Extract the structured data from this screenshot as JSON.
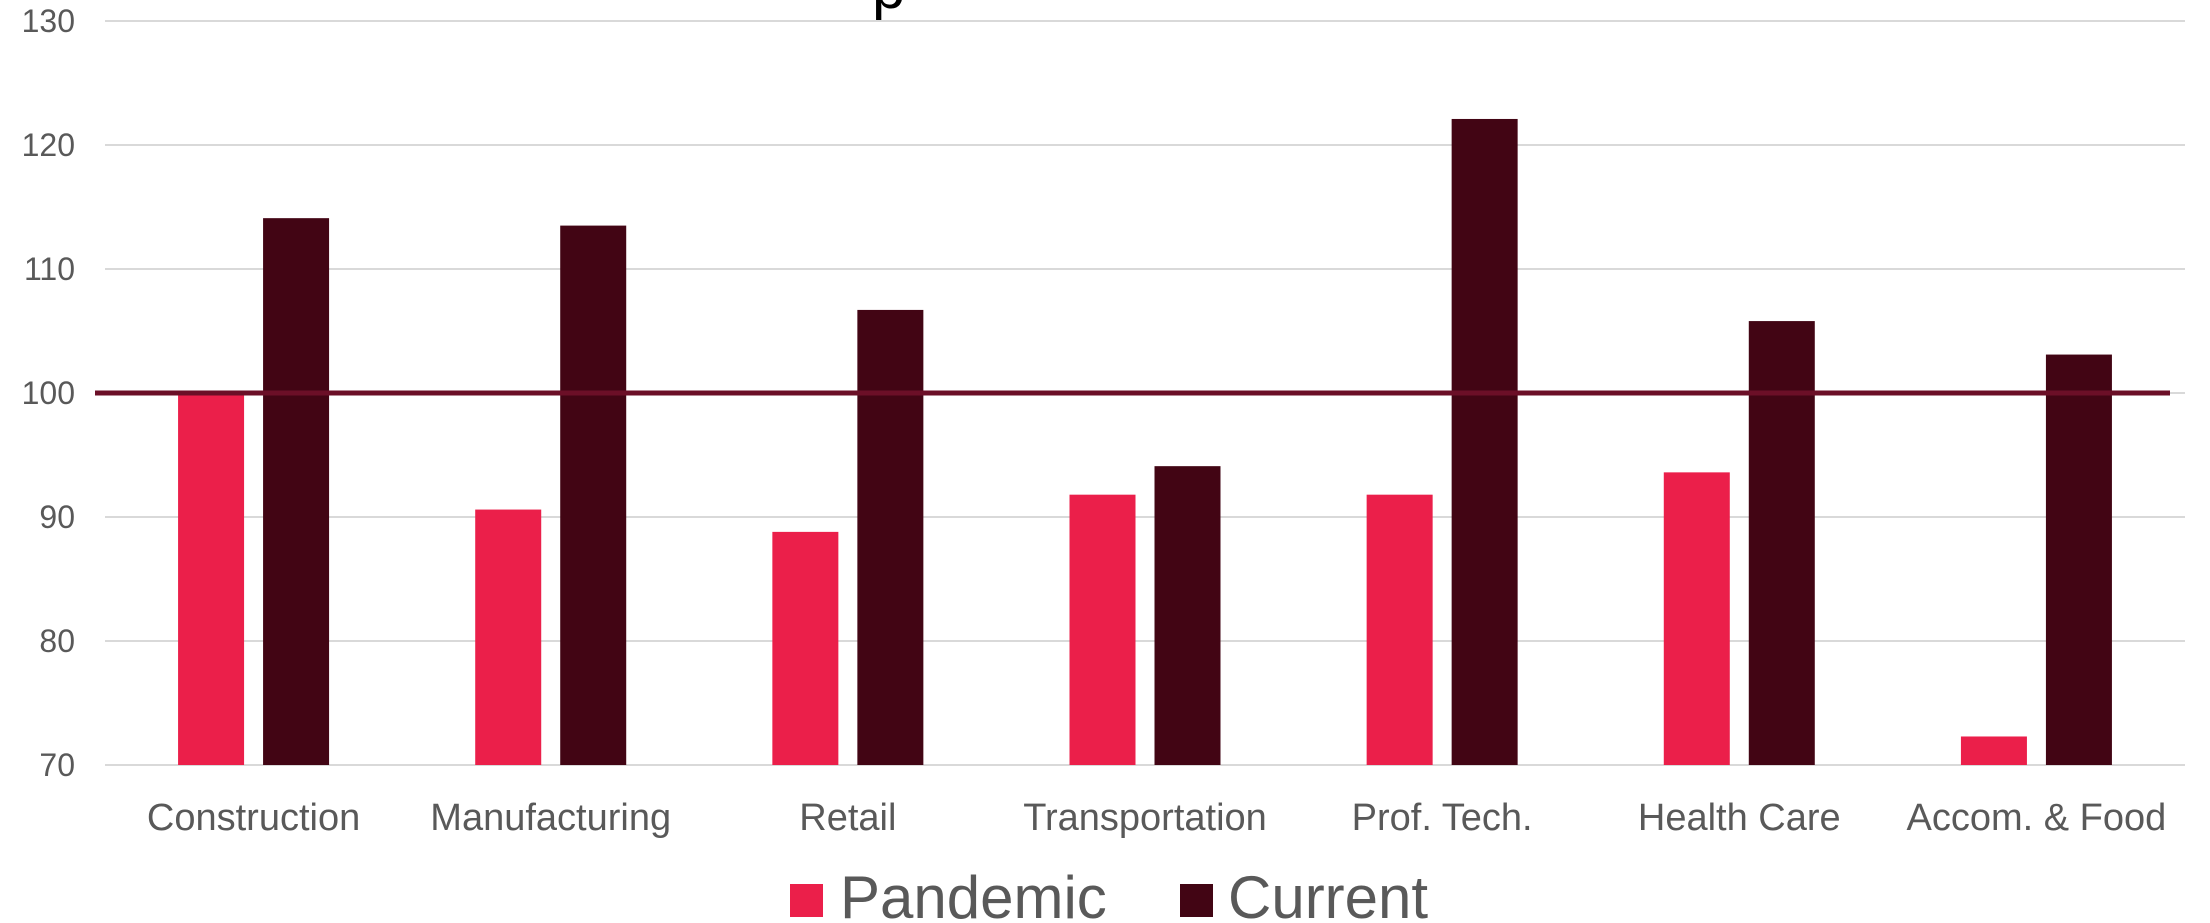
{
  "chart_data": {
    "type": "bar",
    "categories": [
      "Construction",
      "Manufacturing",
      "Retail",
      "Transportation",
      "Prof. Tech.",
      "Health Care",
      "Accom. & Food"
    ],
    "series": [
      {
        "name": "Pandemic",
        "color": "#EB1F4A",
        "values": [
          100,
          90.6,
          88.8,
          91.8,
          91.8,
          93.6,
          72.3
        ]
      },
      {
        "name": "Current",
        "color": "#420514",
        "values": [
          114.1,
          113.5,
          106.7,
          94.1,
          122.1,
          105.8,
          103.1
        ]
      }
    ],
    "ylim": [
      70,
      130
    ],
    "yticks": [
      "70",
      "80",
      "90",
      "100",
      "110",
      "120",
      "130"
    ],
    "reference_line": {
      "value": 100,
      "color": "#6B0F27"
    },
    "grid": true,
    "legend_position": "bottom",
    "gridline_color": "#d9d9d9",
    "text_color": "#595959"
  }
}
